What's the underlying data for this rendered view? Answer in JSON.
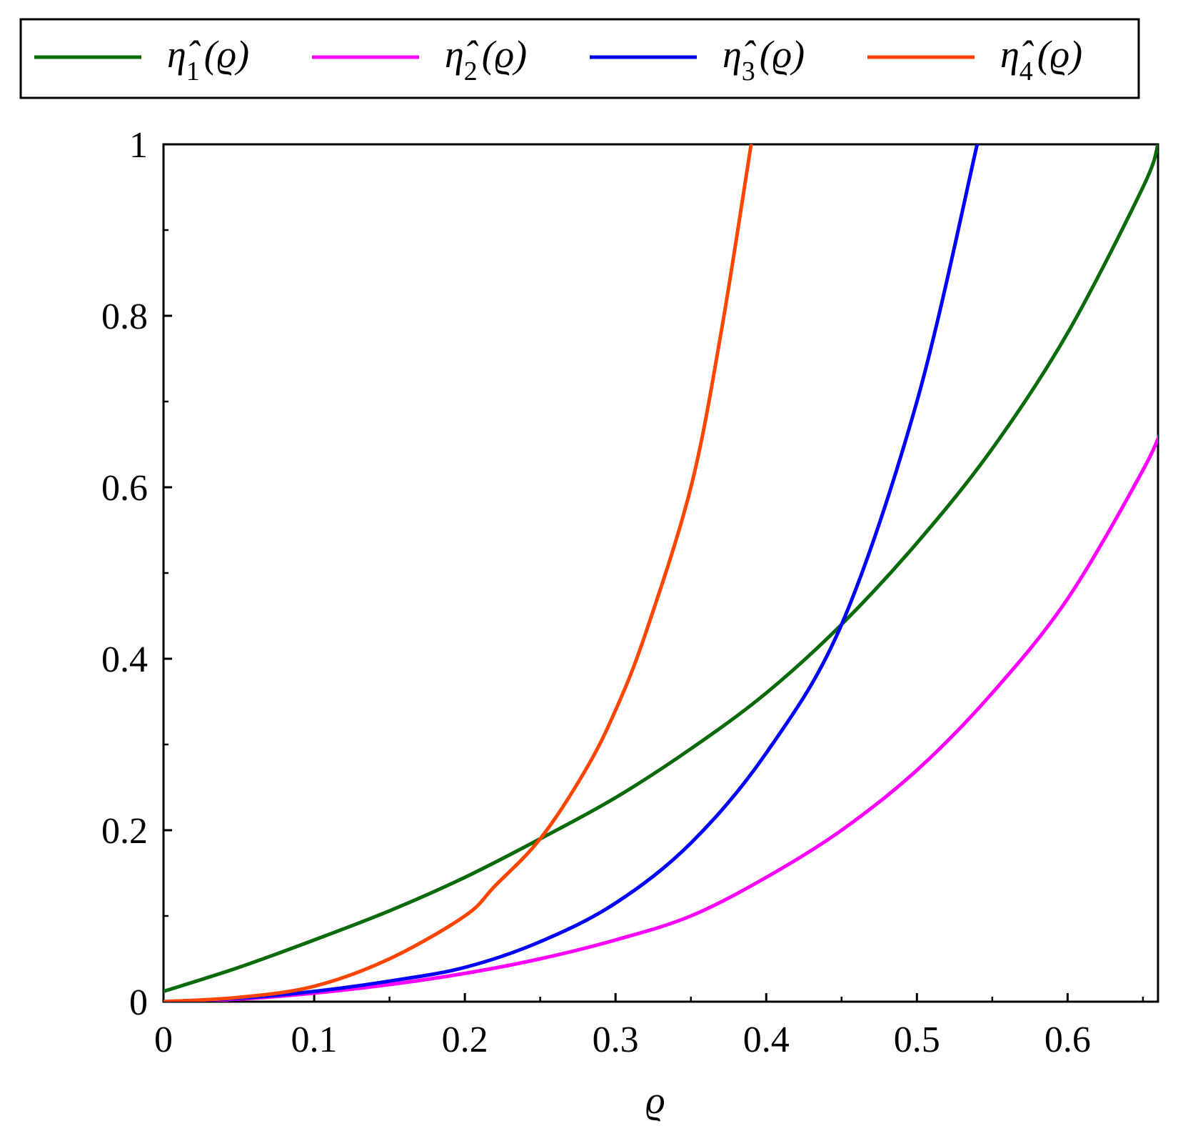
{
  "chart_data": {
    "type": "line",
    "title": "",
    "xlabel": "ϱ",
    "ylabel": "",
    "xlim": [
      0,
      0.66
    ],
    "ylim": [
      0,
      1
    ],
    "x_ticks": [
      "0",
      "0.1",
      "0.2",
      "0.3",
      "0.4",
      "0.5",
      "0.6"
    ],
    "y_ticks": [
      "0",
      "0.2",
      "0.4",
      "0.6",
      "0.8",
      "1"
    ],
    "grid": false,
    "legend_position": "top",
    "series": [
      {
        "name": "η̂1(ϱ)",
        "legend_base": "η̂",
        "legend_sub": "1",
        "legend_arg": "(ϱ)",
        "color": "#0b6b0b",
        "x": [
          0,
          0.05,
          0.1,
          0.15,
          0.2,
          0.25,
          0.3,
          0.35,
          0.4,
          0.45,
          0.5,
          0.55,
          0.6,
          0.65,
          0.66
        ],
        "y": [
          0.012,
          0.04,
          0.072,
          0.106,
          0.145,
          0.19,
          0.238,
          0.295,
          0.36,
          0.44,
          0.535,
          0.645,
          0.78,
          0.95,
          1.0
        ]
      },
      {
        "name": "η̂2(ϱ)",
        "legend_base": "η̂",
        "legend_sub": "2",
        "legend_arg": "(ϱ)",
        "color": "#ff00ff",
        "x": [
          0,
          0.05,
          0.1,
          0.15,
          0.2,
          0.25,
          0.3,
          0.35,
          0.4,
          0.45,
          0.5,
          0.55,
          0.6,
          0.65,
          0.665
        ],
        "y": [
          0,
          0.003,
          0.01,
          0.02,
          0.033,
          0.05,
          0.072,
          0.1,
          0.145,
          0.2,
          0.27,
          0.36,
          0.47,
          0.62,
          0.68
        ]
      },
      {
        "name": "η̂3(ϱ)",
        "legend_base": "η̂",
        "legend_sub": "3",
        "legend_arg": "(ϱ)",
        "color": "#0000ff",
        "x": [
          0,
          0.05,
          0.1,
          0.15,
          0.2,
          0.25,
          0.3,
          0.35,
          0.4,
          0.45,
          0.5,
          0.54
        ],
        "y": [
          0,
          0.004,
          0.012,
          0.024,
          0.04,
          0.07,
          0.115,
          0.185,
          0.29,
          0.44,
          0.7,
          1.0
        ]
      },
      {
        "name": "η̂4(ϱ)",
        "legend_base": "η̂",
        "legend_sub": "4",
        "legend_arg": "(ϱ)",
        "color": "#ff4500",
        "x": [
          0,
          0.05,
          0.1,
          0.15,
          0.2,
          0.22,
          0.25,
          0.28,
          0.3,
          0.32,
          0.35,
          0.37,
          0.39
        ],
        "y": [
          0,
          0.005,
          0.018,
          0.05,
          0.1,
          0.135,
          0.19,
          0.27,
          0.34,
          0.43,
          0.6,
          0.78,
          1.0
        ]
      }
    ]
  }
}
